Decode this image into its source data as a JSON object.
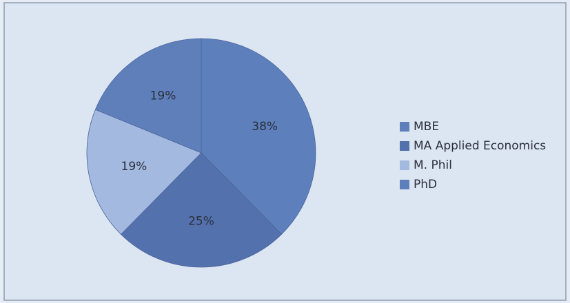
{
  "chart_data": {
    "type": "pie",
    "categories": [
      "MBE",
      "MA Applied Economics",
      "M. Phil",
      "PhD"
    ],
    "values": [
      38,
      25,
      19,
      19
    ],
    "value_labels": [
      "38%",
      "25%",
      "19%",
      "19%"
    ],
    "colors": [
      "#5d7fbb",
      "#5371ad",
      "#a3b9df",
      "#5f7fbb"
    ],
    "legend": "right"
  }
}
